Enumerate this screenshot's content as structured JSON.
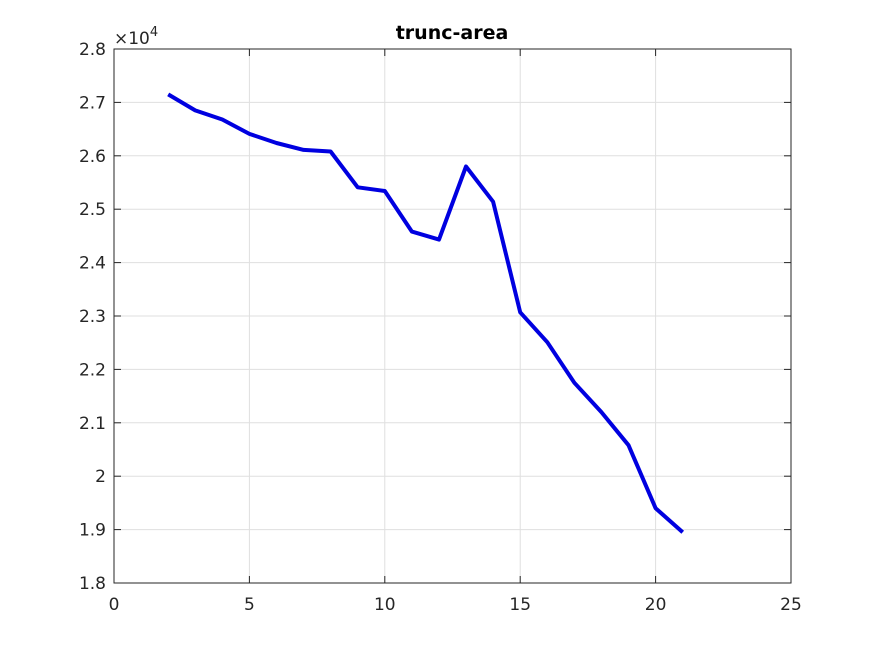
{
  "chart_data": {
    "type": "line",
    "title": "trunc-area",
    "xlabel": "",
    "ylabel": "",
    "y_multiplier_label": "×10",
    "y_multiplier_exponent": "4",
    "xlim": [
      0,
      25
    ],
    "ylim": [
      1.8,
      2.8
    ],
    "x_ticks": [
      0,
      5,
      10,
      15,
      20,
      25
    ],
    "y_ticks": [
      1.8,
      1.9,
      2.0,
      2.1,
      2.2,
      2.3,
      2.4,
      2.5,
      2.6,
      2.7,
      2.8
    ],
    "x_tick_labels": [
      "0",
      "5",
      "10",
      "15",
      "20",
      "25"
    ],
    "y_tick_labels": [
      "1.8",
      "1.9",
      "2",
      "2.1",
      "2.2",
      "2.3",
      "2.4",
      "2.5",
      "2.6",
      "2.7",
      "2.8"
    ],
    "grid": true,
    "series": [
      {
        "color": "#0000e0",
        "x": [
          2,
          3,
          4,
          5,
          6,
          7,
          8,
          9,
          10,
          11,
          12,
          13,
          14,
          15,
          16,
          17,
          18,
          19,
          20,
          21
        ],
        "y": [
          2.715,
          2.685,
          2.668,
          2.641,
          2.624,
          2.611,
          2.608,
          2.541,
          2.534,
          2.458,
          2.443,
          2.58,
          2.514,
          2.307,
          2.251,
          2.175,
          2.12,
          2.058,
          1.94,
          1.895
        ]
      }
    ]
  }
}
